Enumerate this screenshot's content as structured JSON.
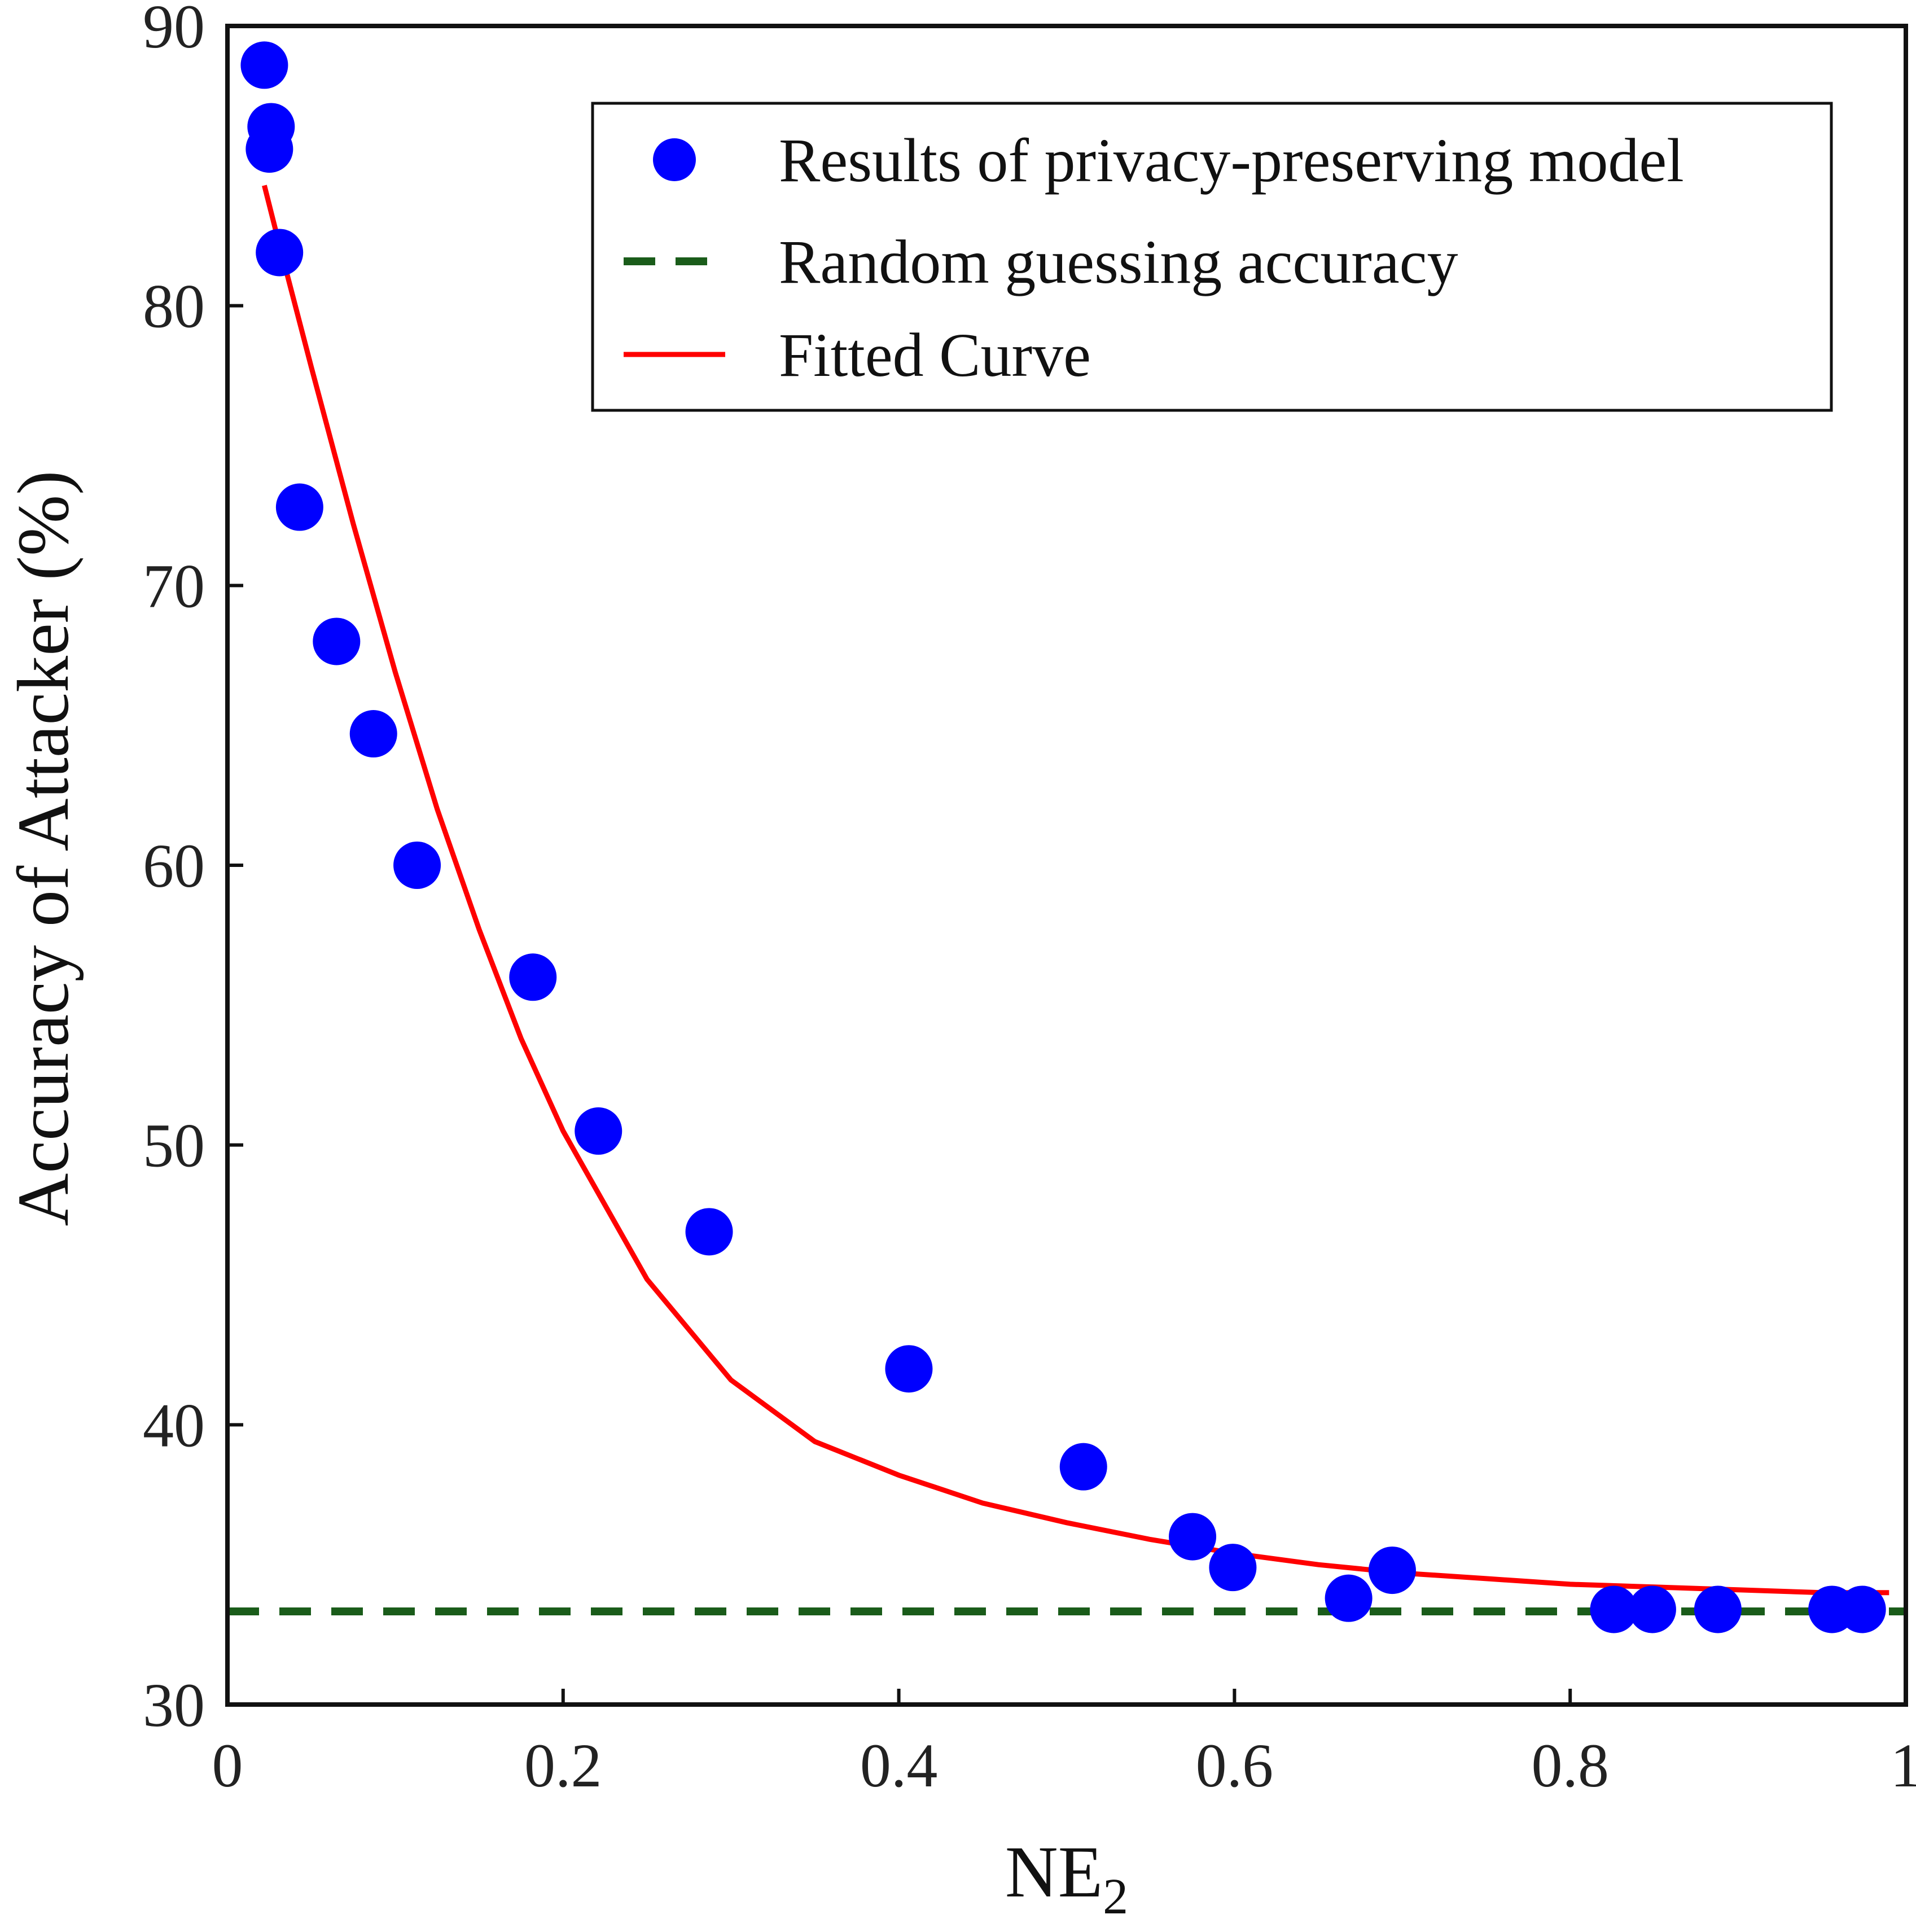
{
  "chart_data": {
    "type": "scatter",
    "xlabel": "NE",
    "xlabel_subscript": "2",
    "ylabel": "Accuracy of Attacker (%)",
    "xlim": [
      0,
      1
    ],
    "ylim": [
      30,
      90
    ],
    "x_ticks": [
      0,
      0.2,
      0.4,
      0.6,
      0.8,
      1
    ],
    "x_tick_labels": [
      "0",
      "0.2",
      "0.4",
      "0.6",
      "0.8",
      "1"
    ],
    "y_ticks": [
      30,
      40,
      50,
      60,
      70,
      80,
      90
    ],
    "y_tick_labels": [
      "30",
      "40",
      "50",
      "60",
      "70",
      "80",
      "90"
    ],
    "grid": false,
    "legend_position": "top-right",
    "series": [
      {
        "name": "Results of privacy-preserving model",
        "kind": "scatter",
        "color": "#0000ff",
        "points": [
          [
            0.022,
            88.6
          ],
          [
            0.026,
            86.4
          ],
          [
            0.025,
            85.6
          ],
          [
            0.031,
            81.9
          ],
          [
            0.043,
            72.8
          ],
          [
            0.065,
            68.0
          ],
          [
            0.087,
            64.7
          ],
          [
            0.113,
            60.0
          ],
          [
            0.182,
            56.0
          ],
          [
            0.221,
            50.5
          ],
          [
            0.287,
            46.9
          ],
          [
            0.406,
            42.0
          ],
          [
            0.51,
            38.5
          ],
          [
            0.575,
            36.0
          ],
          [
            0.599,
            34.9
          ],
          [
            0.668,
            33.8
          ],
          [
            0.694,
            34.8
          ],
          [
            0.826,
            33.4
          ],
          [
            0.849,
            33.4
          ],
          [
            0.888,
            33.4
          ],
          [
            0.956,
            33.4
          ],
          [
            0.974,
            33.4
          ]
        ]
      },
      {
        "name": "Random guessing accuracy",
        "kind": "hline",
        "color": "#1a5c1a",
        "y": 33.33
      },
      {
        "name": "Fitted Curve",
        "kind": "line",
        "color": "#ff0000",
        "points": [
          [
            0.022,
            84.3
          ],
          [
            0.03,
            82.4
          ],
          [
            0.05,
            77.8
          ],
          [
            0.075,
            72.2
          ],
          [
            0.1,
            66.9
          ],
          [
            0.125,
            62.0
          ],
          [
            0.15,
            57.7
          ],
          [
            0.175,
            53.8
          ],
          [
            0.2,
            50.5
          ],
          [
            0.25,
            45.2
          ],
          [
            0.3,
            41.6
          ],
          [
            0.35,
            39.4
          ],
          [
            0.4,
            38.2
          ],
          [
            0.45,
            37.2
          ],
          [
            0.5,
            36.5
          ],
          [
            0.55,
            35.9
          ],
          [
            0.6,
            35.4
          ],
          [
            0.65,
            35.0
          ],
          [
            0.7,
            34.7
          ],
          [
            0.75,
            34.5
          ],
          [
            0.8,
            34.3
          ],
          [
            0.85,
            34.2
          ],
          [
            0.9,
            34.1
          ],
          [
            0.95,
            34.0
          ],
          [
            0.99,
            34.0
          ]
        ]
      }
    ]
  }
}
